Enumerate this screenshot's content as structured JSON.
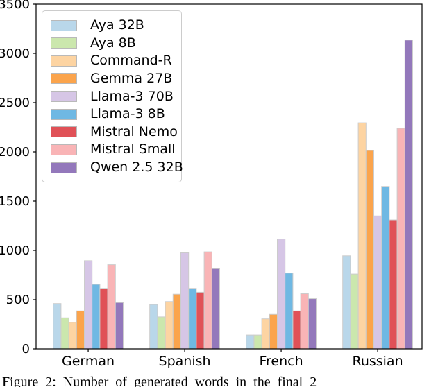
{
  "caption": {
    "text": "Figure 2: Number of generated words in the final 2"
  },
  "chart_data": {
    "type": "bar",
    "title": "",
    "xlabel": "",
    "ylabel": "",
    "grid": false,
    "legend_position": "upper left",
    "ylim": [
      0,
      3500
    ],
    "yticks": [
      0,
      500,
      1000,
      1500,
      2000,
      2500,
      3000,
      3500
    ],
    "categories": [
      "German",
      "Spanish",
      "French",
      "Russian"
    ],
    "series": [
      {
        "name": "Aya 32B",
        "color": "#b9d7ea",
        "values": [
          460,
          450,
          140,
          945
        ]
      },
      {
        "name": "Aya 8B",
        "color": "#cbe7ad",
        "values": [
          315,
          325,
          140,
          760
        ]
      },
      {
        "name": "Command-R",
        "color": "#fdd4a2",
        "values": [
          270,
          480,
          305,
          2295
        ]
      },
      {
        "name": "Gemma 27B",
        "color": "#fba44c",
        "values": [
          385,
          555,
          350,
          2015
        ]
      },
      {
        "name": "Llama-3 70B",
        "color": "#d6c6e6",
        "values": [
          895,
          975,
          1115,
          1350
        ]
      },
      {
        "name": "Llama-3 8B",
        "color": "#6fb8e3",
        "values": [
          655,
          615,
          770,
          1650
        ]
      },
      {
        "name": "Mistral Nemo",
        "color": "#e05157",
        "values": [
          615,
          575,
          385,
          1310
        ]
      },
      {
        "name": "Mistral Small",
        "color": "#f9b4b6",
        "values": [
          855,
          985,
          560,
          2240
        ]
      },
      {
        "name": "Qwen 2.5 32B",
        "color": "#9378bb",
        "values": [
          470,
          815,
          510,
          3135
        ]
      }
    ],
    "bar_edge_color": "#cccccc",
    "axis_color": "#000000"
  }
}
